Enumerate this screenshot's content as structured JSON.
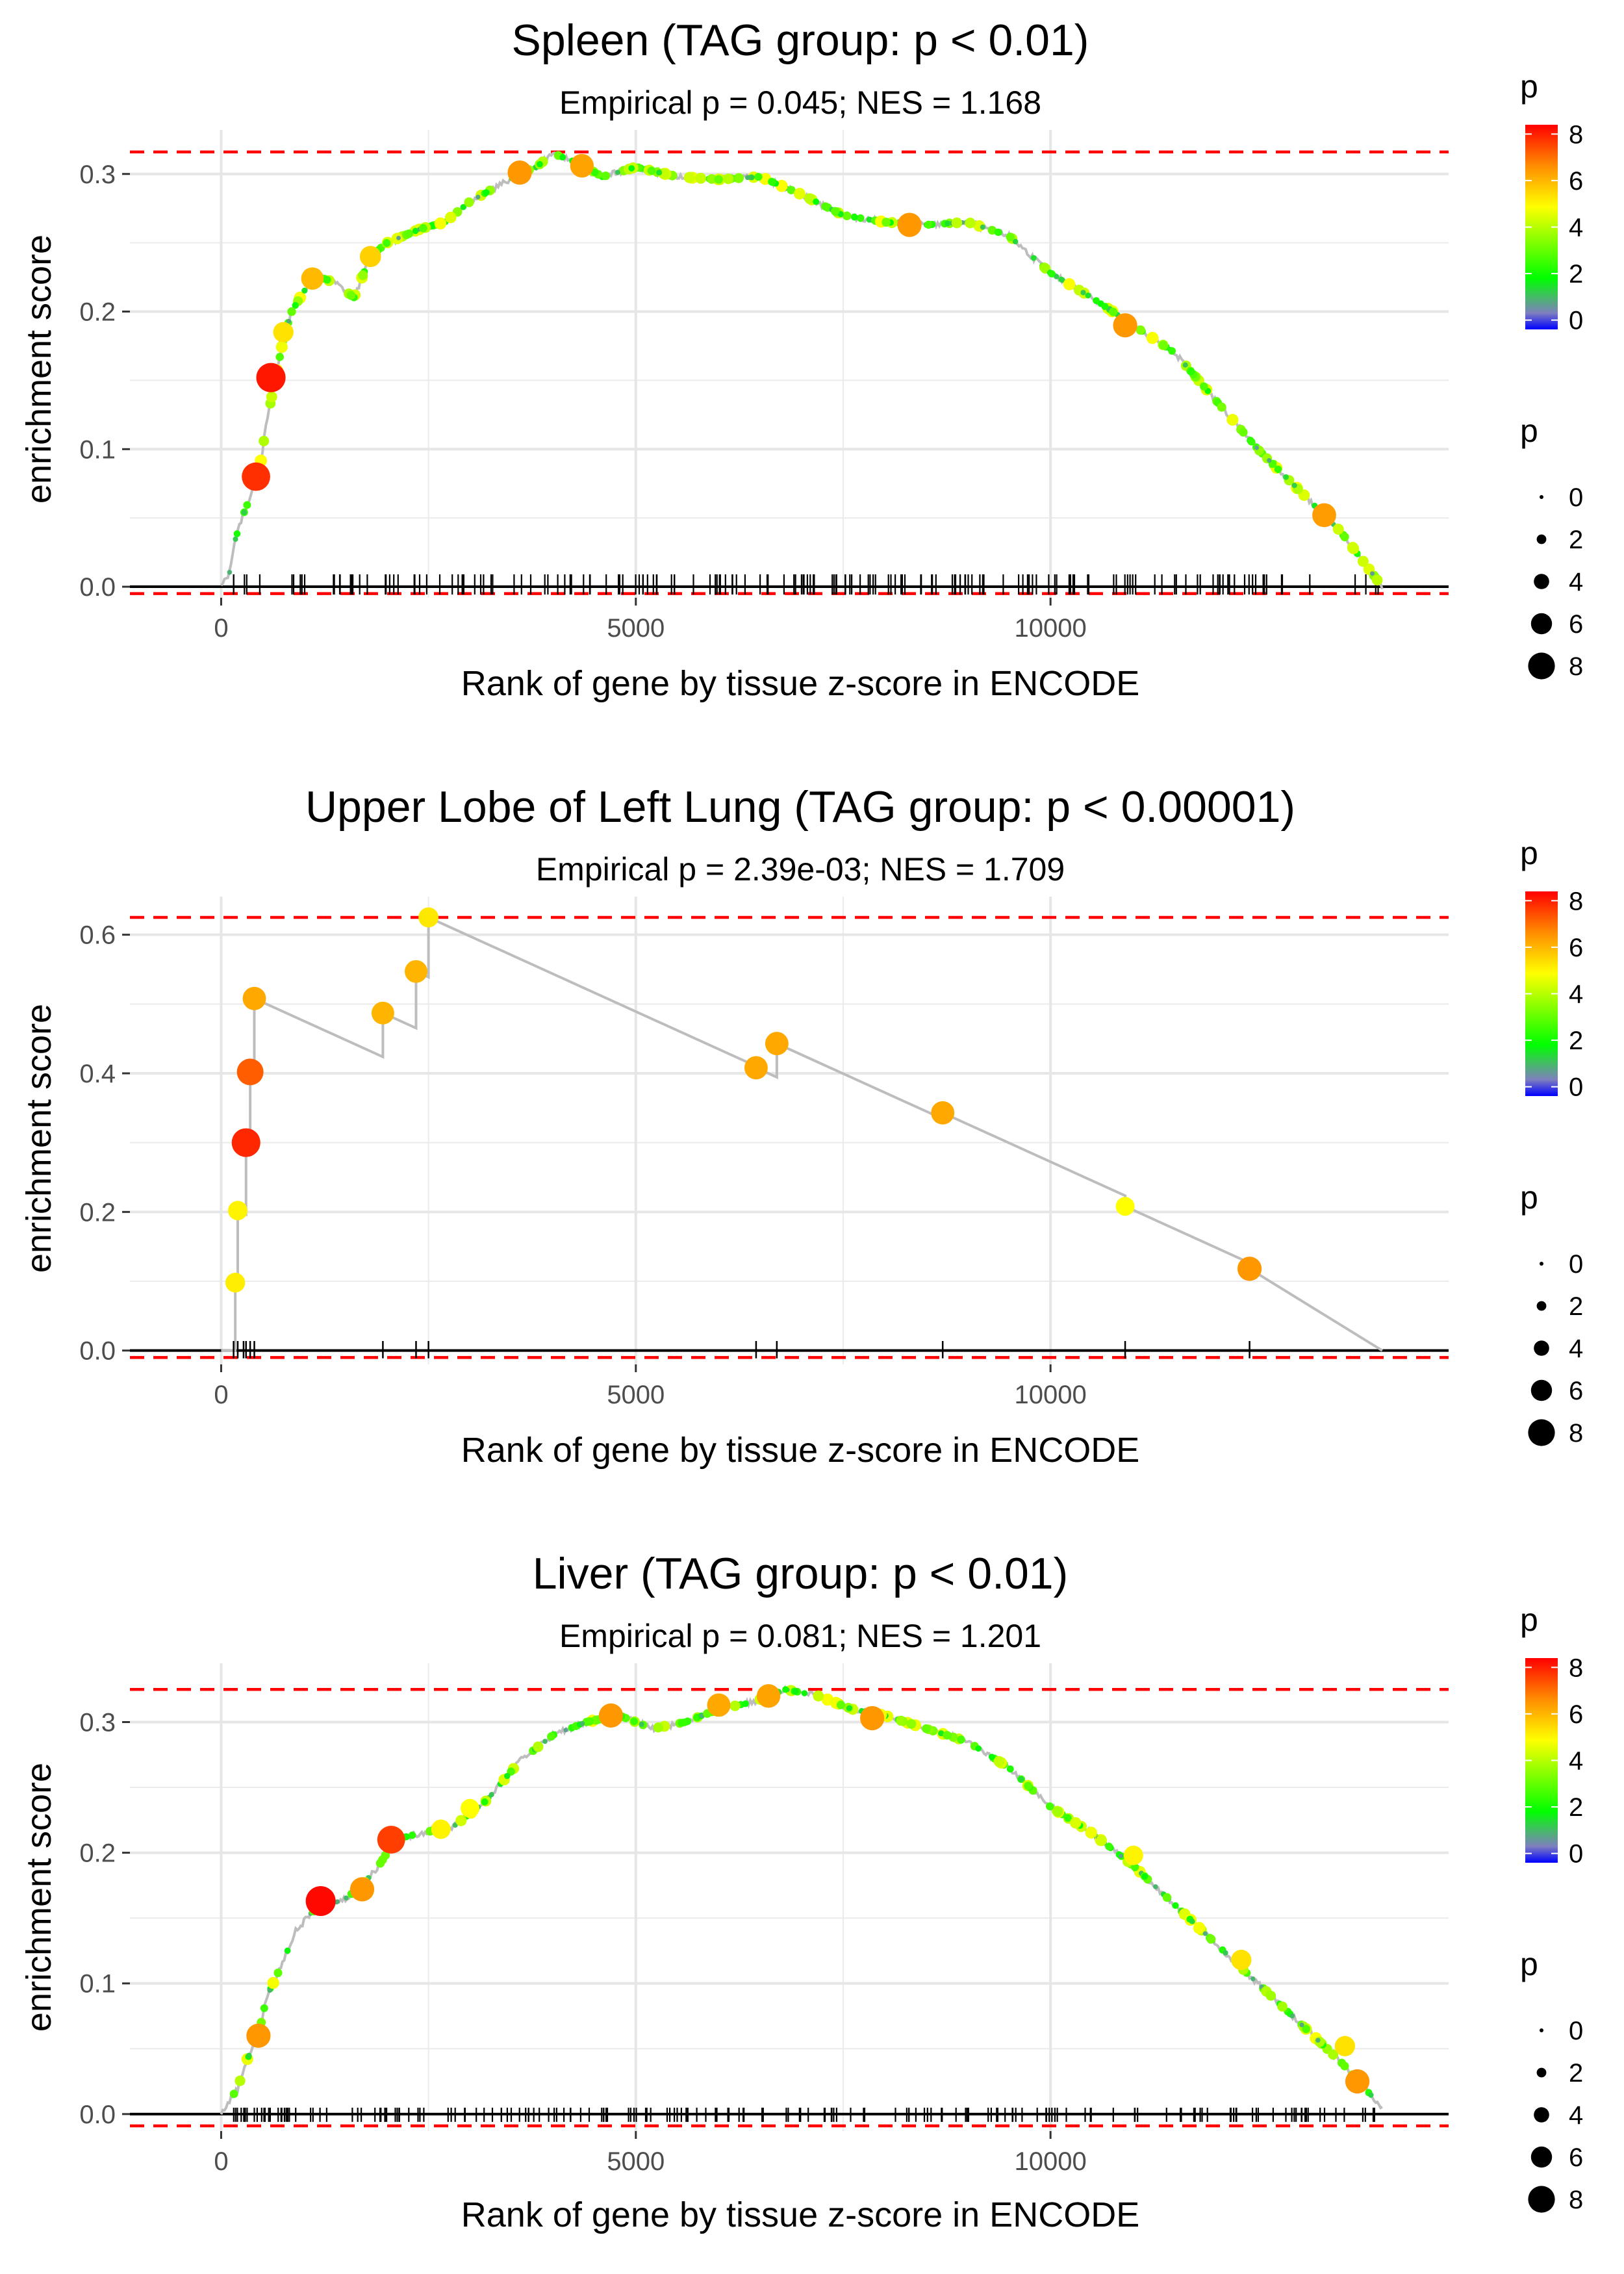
{
  "figure": {
    "colorscale": [
      "#0000ff",
      "#7f7fbf",
      "#00ff00",
      "#ffff00",
      "#ff8c00",
      "#ff0000"
    ]
  },
  "chart_data": [
    {
      "type": "line",
      "title": "Spleen (TAG group: p < 0.01)",
      "subtitle": "Empirical p = 0.045; NES = 1.168",
      "xlabel": "Rank of gene by tissue z-score in ENCODE",
      "ylabel": "enrichment score",
      "xlim": [
        -1100,
        14800
      ],
      "ylim": [
        -0.008,
        0.332
      ],
      "xticks": [
        0,
        5000,
        10000
      ],
      "xtick_labels": [
        "0",
        "5000",
        "10000"
      ],
      "yticks": [
        0,
        0.1,
        0.2,
        0.3
      ],
      "ytick_labels": [
        "0.0",
        "0.1",
        "0.2",
        "0.3"
      ],
      "max_es": 0.316,
      "min_es": -0.005,
      "n_genes": 14000,
      "n_rugs": 180,
      "curve": [
        [
          0,
          0
        ],
        [
          100,
          0.01
        ],
        [
          150,
          0.03
        ],
        [
          250,
          0.05
        ],
        [
          350,
          0.065
        ],
        [
          450,
          0.08
        ],
        [
          550,
          0.12
        ],
        [
          650,
          0.15
        ],
        [
          750,
          0.18
        ],
        [
          850,
          0.2
        ],
        [
          1000,
          0.215
        ],
        [
          1200,
          0.225
        ],
        [
          1400,
          0.22
        ],
        [
          1600,
          0.21
        ],
        [
          1800,
          0.24
        ],
        [
          2000,
          0.25
        ],
        [
          2400,
          0.26
        ],
        [
          2700,
          0.265
        ],
        [
          3000,
          0.28
        ],
        [
          3300,
          0.29
        ],
        [
          3600,
          0.3
        ],
        [
          3800,
          0.305
        ],
        [
          4000,
          0.315
        ],
        [
          4300,
          0.308
        ],
        [
          4600,
          0.298
        ],
        [
          5000,
          0.305
        ],
        [
          5500,
          0.298
        ],
        [
          6000,
          0.296
        ],
        [
          6500,
          0.298
        ],
        [
          7000,
          0.285
        ],
        [
          7500,
          0.27
        ],
        [
          8000,
          0.265
        ],
        [
          8500,
          0.263
        ],
        [
          9000,
          0.265
        ],
        [
          9500,
          0.255
        ],
        [
          10000,
          0.228
        ],
        [
          10500,
          0.21
        ],
        [
          11000,
          0.19
        ],
        [
          11500,
          0.17
        ],
        [
          12000,
          0.135
        ],
        [
          12500,
          0.1
        ],
        [
          13000,
          0.07
        ],
        [
          13500,
          0.04
        ],
        [
          14000,
          0
        ]
      ],
      "highlights": [
        [
          420,
          0.08,
          8.2
        ],
        [
          600,
          0.152,
          8.5
        ],
        [
          3600,
          0.301,
          6.8
        ],
        [
          4350,
          0.306,
          6.6
        ],
        [
          1100,
          0.224,
          6.2
        ],
        [
          1800,
          0.24,
          5.8
        ],
        [
          750,
          0.185,
          5.5
        ],
        [
          8300,
          0.263,
          6.8
        ],
        [
          10900,
          0.19,
          6.8
        ],
        [
          13300,
          0.052,
          6.7
        ]
      ]
    },
    {
      "type": "line",
      "title": "Upper Lobe of Left Lung (TAG group: p < 0.00001)",
      "subtitle": "Empirical p = 2.39e-03; NES = 1.709",
      "xlabel": "Rank of gene by tissue z-score in ENCODE",
      "ylabel": "enrichment score",
      "xlim": [
        -1100,
        14800
      ],
      "ylim": [
        -0.02,
        0.655
      ],
      "xticks": [
        0,
        5000,
        10000
      ],
      "xtick_labels": [
        "0",
        "5000",
        "10000"
      ],
      "yticks": [
        0,
        0.2,
        0.4,
        0.6
      ],
      "ytick_labels": [
        "0.0",
        "0.2",
        "0.4",
        "0.6"
      ],
      "max_es": 0.625,
      "min_es": -0.01,
      "n_genes": 14000,
      "points": [
        [
          170,
          0.098,
          5.3
        ],
        [
          200,
          0.202,
          5.2
        ],
        [
          300,
          0.3,
          8.3
        ],
        [
          350,
          0.402,
          7.6
        ],
        [
          400,
          0.508,
          6.5
        ],
        [
          1950,
          0.487,
          6.3
        ],
        [
          2350,
          0.547,
          6.3
        ],
        [
          2500,
          0.625,
          5.4
        ],
        [
          6450,
          0.408,
          6.5
        ],
        [
          6700,
          0.443,
          6.5
        ],
        [
          8700,
          0.343,
          6.5
        ],
        [
          10900,
          0.208,
          5.0
        ],
        [
          12400,
          0.118,
          6.8
        ]
      ],
      "end_x": 14000,
      "rugs": [
        150,
        200,
        270,
        300,
        350,
        400,
        1950,
        2350,
        2500,
        6450,
        6700,
        8700,
        10900,
        12400
      ]
    },
    {
      "type": "line",
      "title": "Liver (TAG group: p < 0.01)",
      "subtitle": "Empirical p = 0.081; NES = 1.201",
      "xlabel": "Rank of gene by tissue z-score in ENCODE",
      "ylabel": "enrichment score",
      "xlim": [
        -1100,
        14800
      ],
      "ylim": [
        -0.013,
        0.345
      ],
      "xticks": [
        0,
        5000,
        10000
      ],
      "xtick_labels": [
        "0",
        "5000",
        "10000"
      ],
      "yticks": [
        0,
        0.1,
        0.2,
        0.3
      ],
      "ytick_labels": [
        "0.0",
        "0.1",
        "0.2",
        "0.3"
      ],
      "max_es": 0.325,
      "min_es": -0.009,
      "n_genes": 14000,
      "n_rugs": 190,
      "curve": [
        [
          0,
          0
        ],
        [
          200,
          0.02
        ],
        [
          300,
          0.04
        ],
        [
          450,
          0.06
        ],
        [
          550,
          0.09
        ],
        [
          700,
          0.11
        ],
        [
          900,
          0.14
        ],
        [
          1100,
          0.155
        ],
        [
          1300,
          0.16
        ],
        [
          1500,
          0.165
        ],
        [
          1700,
          0.175
        ],
        [
          1900,
          0.19
        ],
        [
          2100,
          0.21
        ],
        [
          2400,
          0.215
        ],
        [
          2800,
          0.22
        ],
        [
          3200,
          0.24
        ],
        [
          3600,
          0.27
        ],
        [
          4000,
          0.29
        ],
        [
          4400,
          0.3
        ],
        [
          4800,
          0.305
        ],
        [
          5200,
          0.295
        ],
        [
          5600,
          0.3
        ],
        [
          6000,
          0.31
        ],
        [
          6400,
          0.315
        ],
        [
          6800,
          0.325
        ],
        [
          7200,
          0.32
        ],
        [
          7600,
          0.31
        ],
        [
          8000,
          0.305
        ],
        [
          8500,
          0.295
        ],
        [
          9000,
          0.285
        ],
        [
          9500,
          0.265
        ],
        [
          10000,
          0.235
        ],
        [
          10500,
          0.215
        ],
        [
          11000,
          0.19
        ],
        [
          11500,
          0.16
        ],
        [
          12000,
          0.13
        ],
        [
          12500,
          0.1
        ],
        [
          13000,
          0.07
        ],
        [
          13500,
          0.04
        ],
        [
          14000,
          0.005
        ]
      ],
      "highlights": [
        [
          1200,
          0.163,
          8.7
        ],
        [
          2050,
          0.21,
          8.0
        ],
        [
          1700,
          0.172,
          6.8
        ],
        [
          450,
          0.06,
          6.8
        ],
        [
          4700,
          0.305,
          6.8
        ],
        [
          6000,
          0.313,
          6.5
        ],
        [
          6600,
          0.32,
          6.6
        ],
        [
          7850,
          0.303,
          6.8
        ],
        [
          2650,
          0.218,
          5.2
        ],
        [
          3000,
          0.234,
          5.0
        ],
        [
          11000,
          0.198,
          5.2
        ],
        [
          12300,
          0.118,
          5.5
        ],
        [
          13700,
          0.025,
          6.8
        ],
        [
          13550,
          0.052,
          5.5
        ]
      ]
    }
  ],
  "legends": {
    "color_title": "p",
    "color_ticks": [
      "8",
      "6",
      "4",
      "2",
      "0"
    ],
    "size_title": "p",
    "size_ticks": [
      "0",
      "2",
      "4",
      "6",
      "8"
    ]
  }
}
